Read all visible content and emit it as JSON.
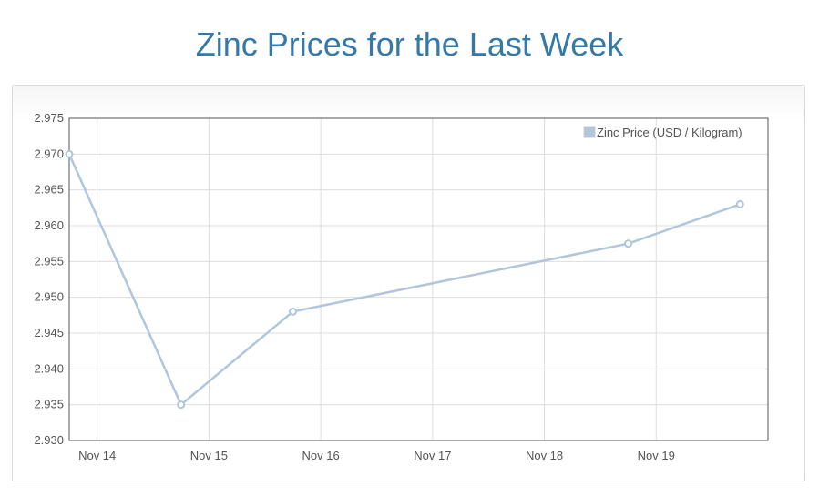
{
  "title": "Zinc Prices for the Last Week",
  "chart_data": {
    "type": "line",
    "title": "Zinc Prices for the Last Week",
    "xlabel": "",
    "ylabel": "",
    "x_ticks": [
      "Nov 14",
      "Nov 15",
      "Nov 16",
      "Nov 17",
      "Nov 18",
      "Nov 19"
    ],
    "x_tick_values": [
      "2013-11-14",
      "2013-11-15",
      "2013-11-16",
      "2013-11-17",
      "2013-11-18",
      "2013-11-19"
    ],
    "y_ticks": [
      "2.930",
      "2.935",
      "2.940",
      "2.945",
      "2.950",
      "2.955",
      "2.960",
      "2.965",
      "2.970",
      "2.975"
    ],
    "ylim": [
      2.93,
      2.975
    ],
    "xlim": [
      "2013-11-13 18:00",
      "2013-11-20 00:00"
    ],
    "grid": true,
    "legend_position": "top-right",
    "series": [
      {
        "name": "Zinc Price (USD / Kilogram)",
        "color": "#b0c6dd",
        "points": [
          {
            "x": "2013-11-13 18:00",
            "y": 2.97
          },
          {
            "x": "2013-11-14 18:00",
            "y": 2.935
          },
          {
            "x": "2013-11-15 18:00",
            "y": 2.948
          },
          {
            "x": "2013-11-18 18:00",
            "y": 2.9575
          },
          {
            "x": "2013-11-19 18:00",
            "y": 2.963
          }
        ]
      }
    ]
  }
}
